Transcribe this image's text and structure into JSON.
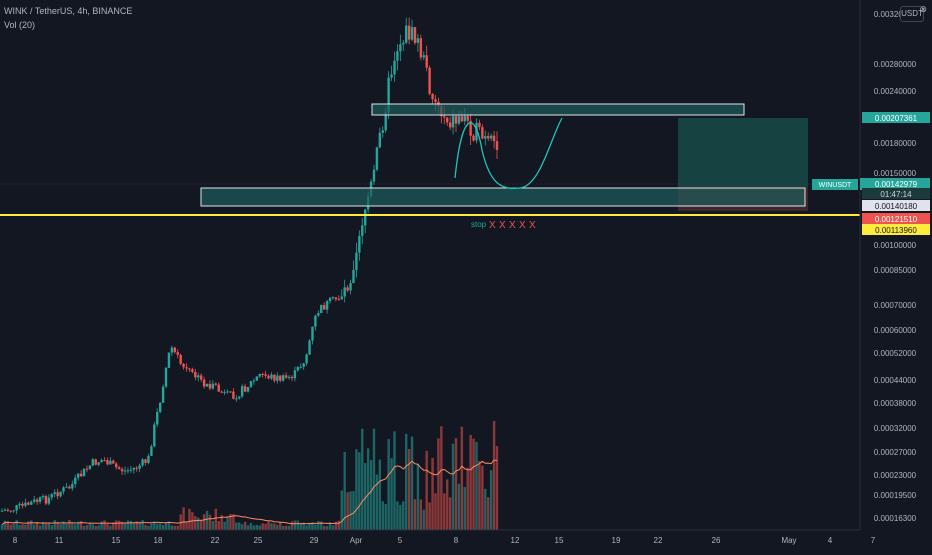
{
  "header": {
    "title": "WINK / TetherUS, 4h, BINANCE",
    "volume_label": "Vol (20)"
  },
  "currency_button": {
    "label": "USDT",
    "icon": "close-icon"
  },
  "colors": {
    "background": "#131722",
    "up": "#26a69a",
    "down": "#ef5350",
    "zone_fill": "#1e5d5b",
    "zone_border": "#e0e3eb",
    "yellow_line": "#ffeb3b",
    "projection_curve": "#22c3b8",
    "target_fill": "#184a46",
    "risk_fill": "#4a2a2a",
    "stop_text": "#ef5350",
    "ma_line": "#ff8a65"
  },
  "price_axis": {
    "ticks": [
      "0.00320000",
      "0.00280000",
      "0.00240000",
      "0.00180000",
      "0.00150000",
      "0.00100000",
      "0.00085000",
      "0.00070000",
      "0.00060000",
      "0.00052000",
      "0.00044000",
      "0.00038000",
      "0.00032000",
      "0.00027000",
      "0.00023000",
      "0.00019500",
      "0.00016300"
    ],
    "badges": [
      {
        "label": "0.00207361",
        "kind": "target"
      },
      {
        "label": "0.00142979",
        "kind": "current"
      },
      {
        "label": "01:47:14",
        "kind": "countdown"
      },
      {
        "label": "0.00140180",
        "kind": "entry"
      },
      {
        "label": "0.00121510",
        "kind": "stop"
      },
      {
        "label": "0.00113960",
        "kind": "yellow"
      }
    ],
    "symbol_tag": "WINUSDT"
  },
  "time_axis": {
    "ticks": [
      "8",
      "11",
      "15",
      "18",
      "22",
      "25",
      "29",
      "Apr",
      "5",
      "8",
      "12",
      "15",
      "19",
      "22",
      "26",
      "May",
      "4",
      "7"
    ]
  },
  "annotations": {
    "stop_label": "stop",
    "x_marks": [
      "X",
      "X",
      "X",
      "X",
      "X"
    ]
  },
  "chart_data": {
    "type": "candlestick",
    "symbol": "WINK / TetherUS",
    "interval": "4h",
    "exchange": "BINANCE",
    "scale": "log",
    "x_ticks": [
      "8",
      "11",
      "15",
      "18",
      "22",
      "25",
      "29",
      "Apr",
      "5",
      "8",
      "12",
      "15",
      "19",
      "22",
      "26",
      "May",
      "4",
      "7"
    ],
    "close_path": [
      0.00017,
      0.000172,
      0.000175,
      0.00018,
      0.000182,
      0.00019,
      0.000195,
      0.00021,
      0.000225,
      0.00023,
      0.00022,
      0.000215,
      0.00022,
      0.00023,
      0.00032,
      0.00045,
      0.0004,
      0.00038,
      0.00036,
      0.00035,
      0.000335,
      0.00034,
      0.00036,
      0.00038,
      0.000375,
      0.00037,
      0.00038,
      0.00042,
      0.00055,
      0.00058,
      0.0006,
      0.00068,
      0.00095,
      0.0012,
      0.0018,
      0.0026,
      0.0029,
      0.0027,
      0.0021,
      0.0018,
      0.0017,
      0.00175,
      0.0016,
      0.0015,
      0.00143
    ],
    "levels": {
      "target": 0.00207361,
      "current": 0.00142979,
      "entry": 0.0014018,
      "stop": 0.0012151,
      "yellow_line": 0.0011396
    }
  }
}
